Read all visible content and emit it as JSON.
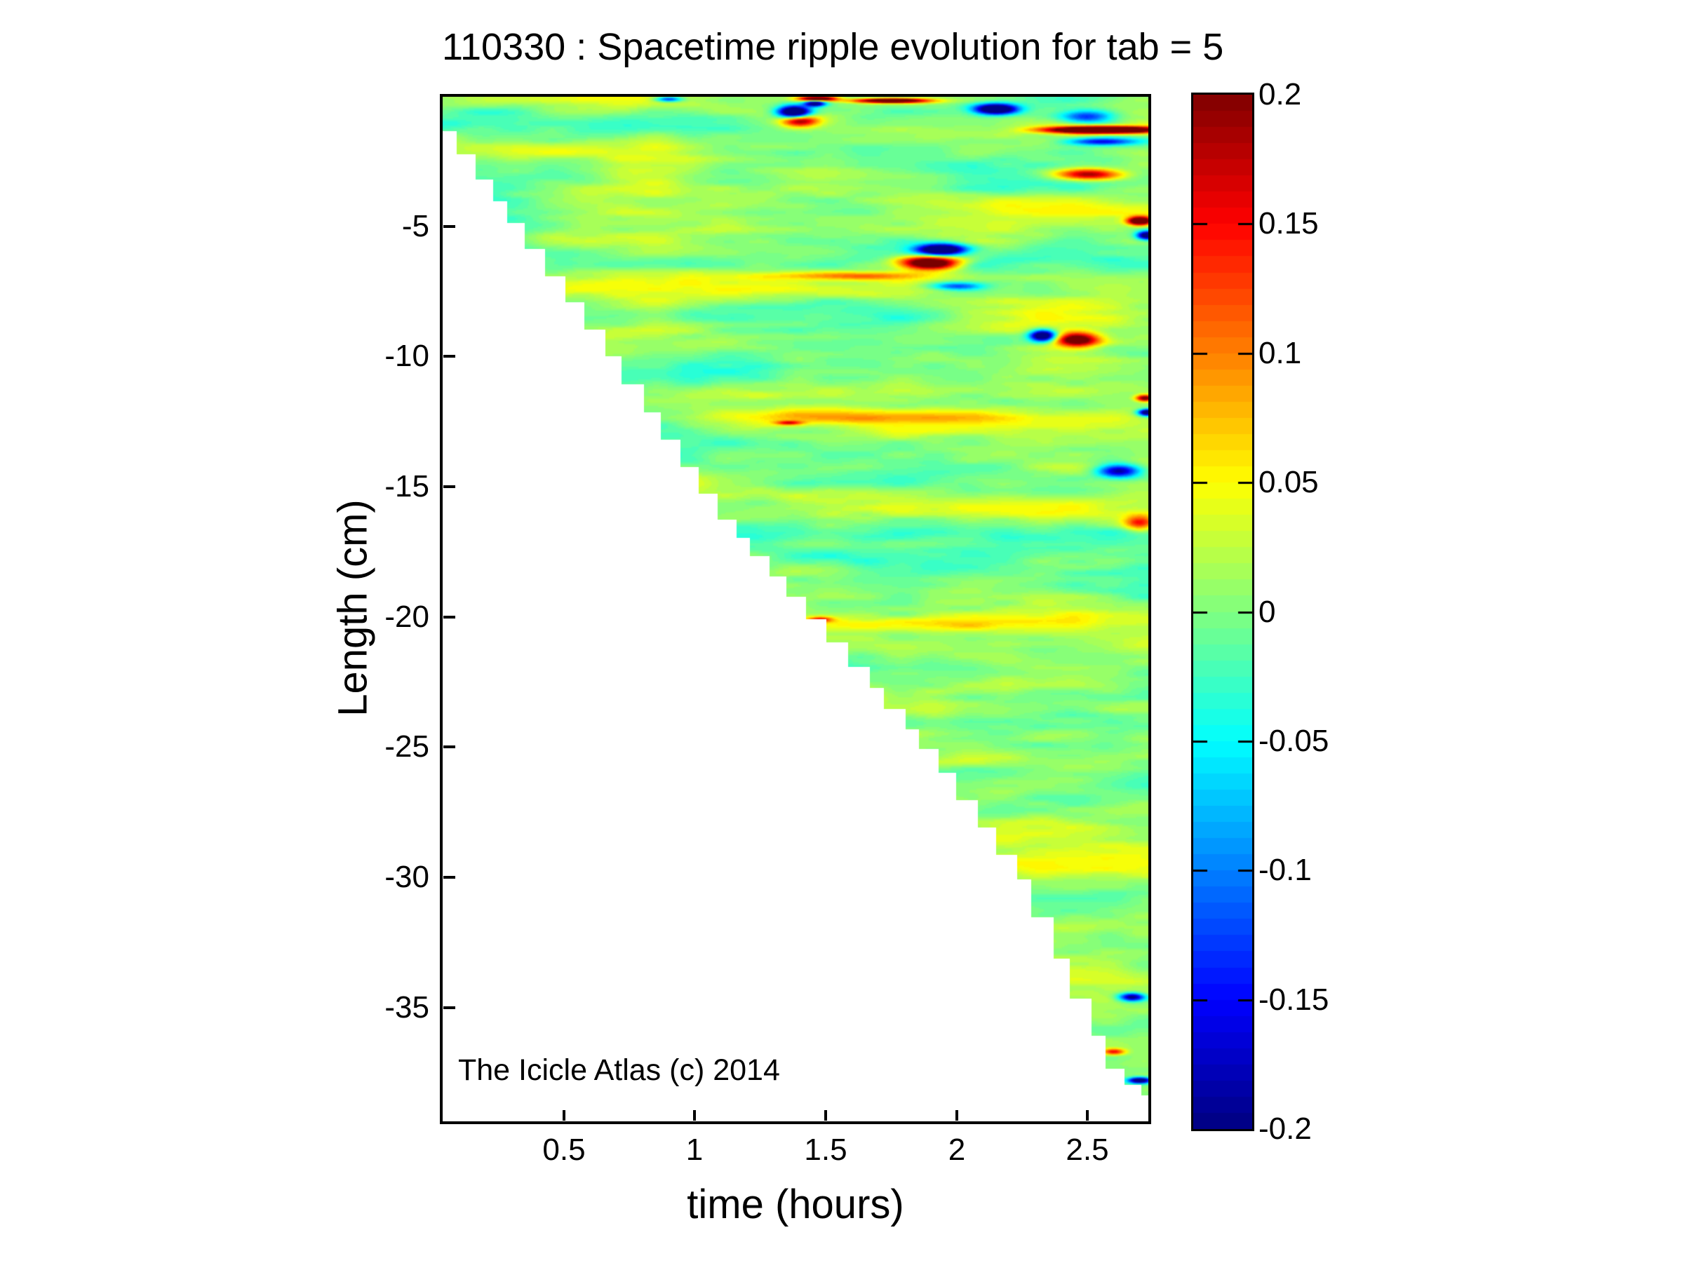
{
  "figure": {
    "title": "110330 : Spacetime ripple evolution for tab = 5",
    "xlabel": "time (hours)",
    "ylabel": "Length (cm)",
    "annotation": "The Icicle Atlas (c) 2014",
    "background": "#ffffff",
    "text_color": "#000000"
  },
  "chart_data": {
    "type": "heatmap",
    "title": "110330 : Spacetime ripple evolution for tab = 5",
    "xlabel": "time (hours)",
    "ylabel": "Length (cm)",
    "x_range": [
      0.035,
      2.735
    ],
    "y_range": [
      -39.4,
      0
    ],
    "x_ticks": [
      0.5,
      1,
      1.5,
      2,
      2.5
    ],
    "y_ticks": [
      -5,
      -10,
      -15,
      -20,
      -25,
      -30,
      -35
    ],
    "grid": false,
    "colorbar": {
      "range": [
        -0.2,
        0.2
      ],
      "ticks": [
        0.2,
        0.15,
        0.1,
        0.05,
        0,
        -0.05,
        -0.1,
        -0.15,
        -0.2
      ],
      "colormap": "jet",
      "levels": 64,
      "position": "right"
    },
    "mask": "white below icicle tip (icicle grows longer over time, staircase boundary)",
    "icicle_tip_cm_vs_hours": [
      [
        0.035,
        0.95
      ],
      [
        0.34,
        5.2
      ],
      [
        0.63,
        9.1
      ],
      [
        1.1,
        16.0
      ],
      [
        1.59,
        21.5
      ],
      [
        1.93,
        25.5
      ],
      [
        2.26,
        30.1
      ],
      [
        2.47,
        34.6
      ],
      [
        2.6,
        37.3
      ],
      [
        2.735,
        38.5
      ]
    ],
    "tip_step_hours": 0.066,
    "ripple_noise": {
      "base": 0.005,
      "amplitude": 0.034,
      "octaves": [
        [
          1.25,
          0.95,
          1.0
        ],
        [
          3.2,
          2.05,
          0.55
        ],
        [
          7.5,
          4.4,
          0.32
        ]
      ],
      "seed": 11
    },
    "features": [
      [
        1.47,
        -0.1,
        0.3,
        0.07,
        0.1
      ],
      [
        1.46,
        -0.28,
        -0.25,
        0.04,
        0.12
      ],
      [
        1.38,
        -0.62,
        -0.32,
        0.06,
        0.25
      ],
      [
        1.4,
        -0.95,
        0.22,
        0.07,
        0.22
      ],
      [
        1.75,
        -0.18,
        0.3,
        0.14,
        0.09
      ],
      [
        2.15,
        -0.5,
        -0.3,
        0.08,
        0.2
      ],
      [
        2.5,
        -0.8,
        -0.14,
        0.1,
        0.25
      ],
      [
        2.56,
        -1.3,
        0.42,
        0.2,
        0.13
      ],
      [
        2.56,
        -1.75,
        -0.16,
        0.12,
        0.14
      ],
      [
        0.9,
        -0.12,
        -0.16,
        0.05,
        0.1
      ],
      [
        2.5,
        -3.0,
        0.2,
        0.12,
        0.22
      ],
      [
        1.94,
        -5.9,
        -0.32,
        0.09,
        0.22
      ],
      [
        1.9,
        -6.4,
        0.3,
        0.11,
        0.26
      ],
      [
        1.6,
        -6.9,
        0.09,
        0.3,
        0.16
      ],
      [
        2.0,
        -7.3,
        -0.13,
        0.1,
        0.15
      ],
      [
        2.7,
        -4.8,
        0.3,
        0.045,
        0.16
      ],
      [
        2.73,
        -5.35,
        -0.28,
        0.04,
        0.16
      ],
      [
        2.33,
        -9.2,
        -0.3,
        0.05,
        0.22
      ],
      [
        2.46,
        -9.35,
        0.24,
        0.08,
        0.26
      ],
      [
        2.72,
        -11.6,
        0.22,
        0.035,
        0.13
      ],
      [
        2.73,
        -12.15,
        -0.28,
        0.035,
        0.13
      ],
      [
        1.7,
        -12.3,
        0.055,
        0.8,
        0.3
      ],
      [
        1.36,
        -12.55,
        0.13,
        0.05,
        0.08
      ],
      [
        1.8,
        -20.3,
        0.055,
        0.45,
        0.28
      ],
      [
        1.48,
        -20.1,
        0.12,
        0.045,
        0.1
      ],
      [
        2.62,
        -14.4,
        -0.2,
        0.08,
        0.25
      ],
      [
        2.7,
        -16.4,
        0.15,
        0.06,
        0.28
      ],
      [
        2.67,
        -34.6,
        -0.22,
        0.05,
        0.16
      ],
      [
        2.6,
        -36.7,
        0.16,
        0.045,
        0.12
      ],
      [
        2.7,
        -37.8,
        -0.26,
        0.045,
        0.12
      ]
    ],
    "annotation": "The Icicle Atlas (c) 2014"
  }
}
